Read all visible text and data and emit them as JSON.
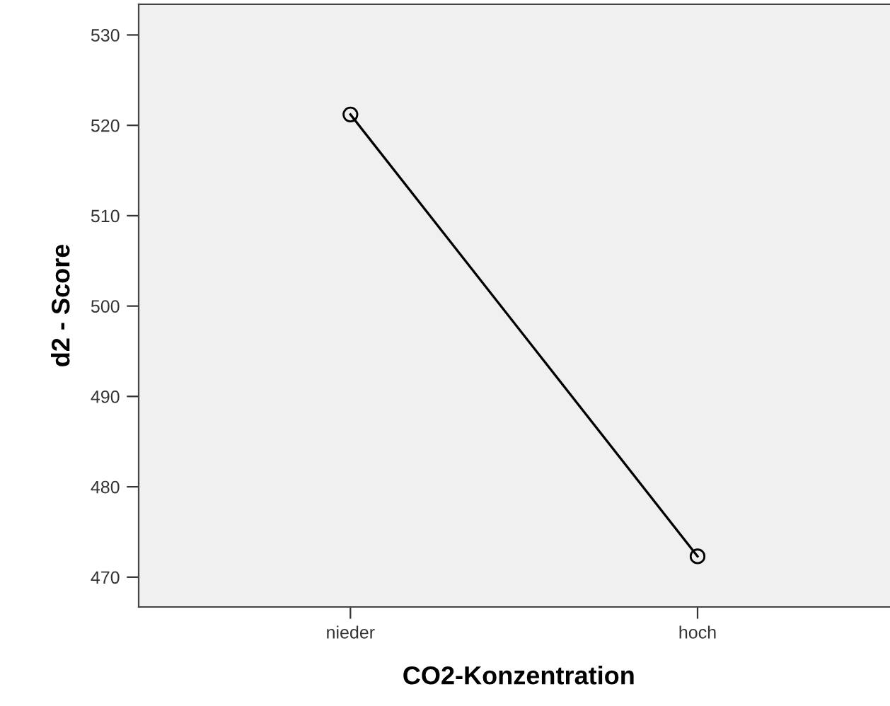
{
  "chart_data": {
    "type": "line",
    "xlabel": "CO2-Konzentration",
    "ylabel": "d2 - Score",
    "categories": [
      "nieder",
      "hoch"
    ],
    "series": [
      {
        "color": "#000000",
        "values": [
          521.2,
          472.3
        ]
      }
    ],
    "ylim": [
      466.7,
      533.4
    ],
    "yticks": [
      470,
      480,
      490,
      500,
      510,
      520,
      530
    ],
    "marker": "circle",
    "line_style": "solid",
    "grid": false,
    "legend": false
  }
}
